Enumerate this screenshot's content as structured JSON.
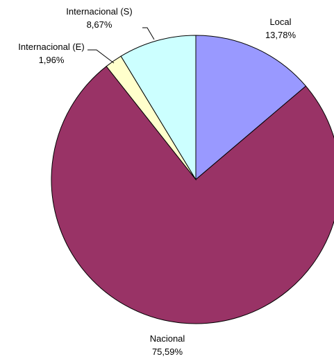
{
  "chart_data": {
    "type": "pie",
    "title": "",
    "start_angle_deg": 0,
    "direction": "clockwise",
    "legend": "none",
    "slices": [
      {
        "name": "Local",
        "value": 13.78,
        "value_label": "13,78%",
        "color": "#9999ff"
      },
      {
        "name": "Nacional",
        "value": 75.59,
        "value_label": "75,59%",
        "color": "#993366"
      },
      {
        "name": "Internacional (E)",
        "value": 1.96,
        "value_label": "1,96%",
        "color": "#ffffcc"
      },
      {
        "name": "Internacional (S)",
        "value": 8.67,
        "value_label": "8,67%",
        "color": "#ccffff"
      }
    ]
  }
}
